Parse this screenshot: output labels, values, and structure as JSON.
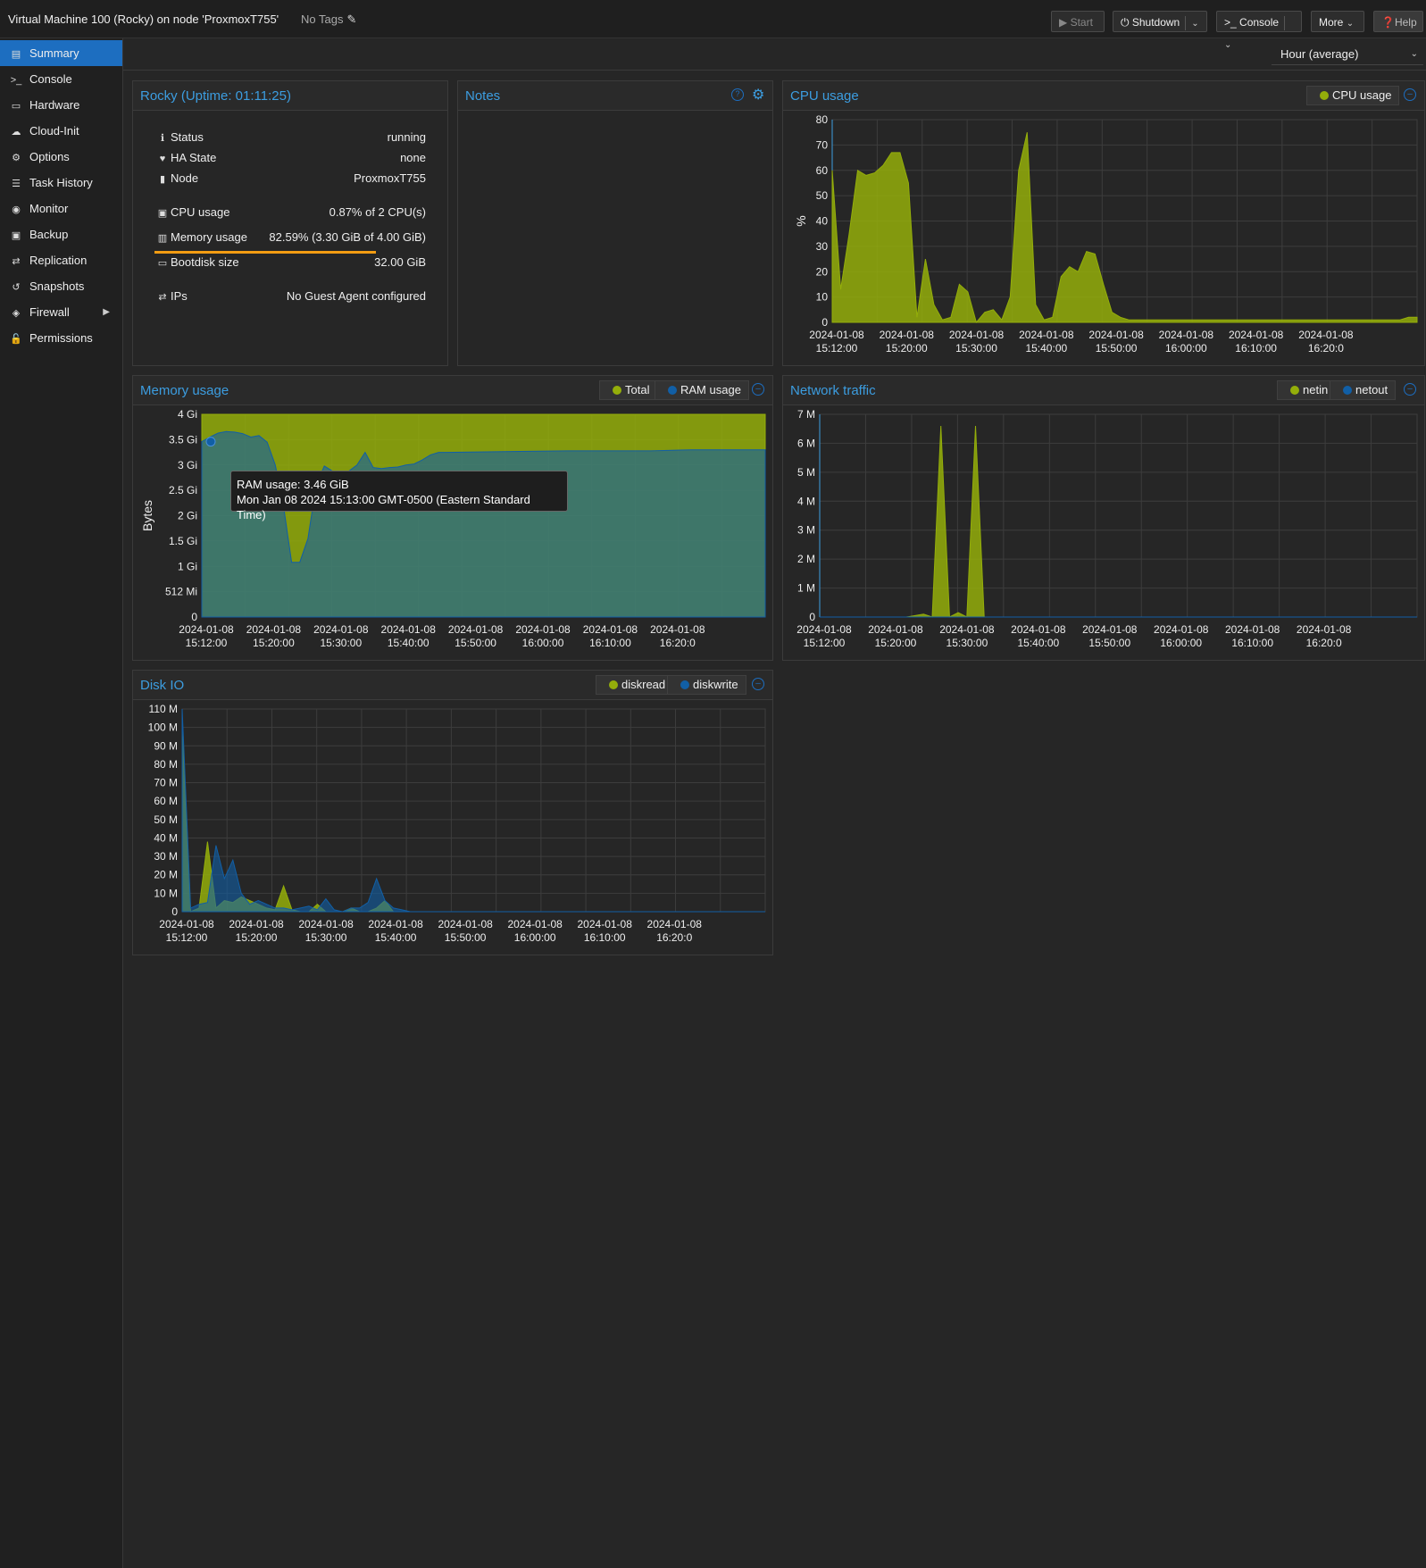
{
  "header": {
    "title": "Virtual Machine 100 (Rocky) on node 'ProxmoxT755'",
    "tags": "No Tags",
    "buttons": {
      "start": "Start",
      "shutdown": "Shutdown",
      "console": "Console",
      "more": "More",
      "help": "Help"
    }
  },
  "sidebar": {
    "items": [
      {
        "label": "Summary",
        "icon": "book-icon",
        "glyph": "▤"
      },
      {
        "label": "Console",
        "icon": "terminal-icon",
        "glyph": ">_"
      },
      {
        "label": "Hardware",
        "icon": "monitor-icon",
        "glyph": "▭"
      },
      {
        "label": "Cloud-Init",
        "icon": "cloud-icon",
        "glyph": "☁"
      },
      {
        "label": "Options",
        "icon": "gear-icon",
        "glyph": "⚙"
      },
      {
        "label": "Task History",
        "icon": "list-icon",
        "glyph": "☰"
      },
      {
        "label": "Monitor",
        "icon": "eye-icon",
        "glyph": "◉"
      },
      {
        "label": "Backup",
        "icon": "floppy-icon",
        "glyph": "▣"
      },
      {
        "label": "Replication",
        "icon": "retweet-icon",
        "glyph": "⇄"
      },
      {
        "label": "Snapshots",
        "icon": "history-icon",
        "glyph": "↺"
      },
      {
        "label": "Firewall",
        "icon": "shield-icon",
        "glyph": "◈"
      },
      {
        "label": "Permissions",
        "icon": "unlock-icon",
        "glyph": "🔓"
      }
    ]
  },
  "timeframe": "Hour (average)",
  "status_panel": {
    "title": "Rocky (Uptime: 01:11:25)",
    "rows": {
      "status": {
        "label": "Status",
        "value": "running"
      },
      "ha": {
        "label": "HA State",
        "value": "none"
      },
      "node": {
        "label": "Node",
        "value": "ProxmoxT755"
      },
      "cpu": {
        "label": "CPU usage",
        "value": "0.87% of 2 CPU(s)"
      },
      "memory": {
        "label": "Memory usage",
        "value": "82.59% (3.30 GiB of 4.00 GiB)",
        "fraction": 0.8259
      },
      "bootdisk": {
        "label": "Bootdisk size",
        "value": "32.00 GiB"
      },
      "ips": {
        "label": "IPs",
        "value": "No Guest Agent configured"
      }
    }
  },
  "notes_panel": {
    "title": "Notes"
  },
  "tooltip": {
    "line1": "RAM usage: 3.46 GiB",
    "line2": "Mon Jan 08 2024 15:13:00 GMT-0500 (Eastern Standard Time)"
  },
  "colors": {
    "accent": "#3c9de0",
    "series_a": "#94ae0a",
    "series_b": "#115fa6",
    "mem_bar": "#f39c12"
  },
  "chart_data": [
    {
      "id": "cpu",
      "type": "area",
      "title": "CPU usage",
      "ylabel": "%",
      "ylim": [
        0,
        80
      ],
      "yticks": [
        "0",
        "10",
        "20",
        "30",
        "40",
        "50",
        "60",
        "70",
        "80"
      ],
      "xticks": [
        "2024-01-08 15:12:00",
        "2024-01-08 15:20:00",
        "2024-01-08 15:30:00",
        "2024-01-08 15:40:00",
        "2024-01-08 15:50:00",
        "2024-01-08 16:00:00",
        "2024-01-08 16:10:00",
        "2024-01-08 16:20:0"
      ],
      "xrange": [
        0,
        69
      ],
      "series": [
        {
          "name": "CPU usage",
          "color": "#94ae0a",
          "x": [
            0,
            1,
            2,
            3,
            4,
            5,
            6,
            7,
            8,
            9,
            10,
            11,
            12,
            13,
            14,
            15,
            16,
            17,
            18,
            19,
            20,
            21,
            22,
            23,
            24,
            25,
            26,
            27,
            28,
            29,
            30,
            31,
            32,
            33,
            34,
            35,
            36,
            37,
            38,
            39,
            40,
            41,
            42,
            43,
            44,
            45,
            46,
            47,
            48,
            49,
            50,
            51,
            52,
            53,
            54,
            55,
            56,
            57,
            58,
            59,
            60,
            61,
            62,
            63,
            64,
            65,
            66,
            67,
            68,
            69
          ],
          "values": [
            60,
            13,
            35,
            60,
            58,
            59,
            62,
            67,
            67,
            55,
            2,
            25,
            7,
            1,
            2,
            15,
            12,
            0,
            4,
            5,
            1,
            10,
            60,
            75,
            7,
            1,
            2,
            18,
            22,
            20,
            28,
            27,
            15,
            4,
            2,
            1,
            1,
            1,
            1,
            1,
            1,
            1,
            1,
            1,
            1,
            1,
            1,
            1,
            1,
            1,
            1,
            1,
            1,
            1,
            1,
            1,
            1,
            1,
            1,
            1,
            1,
            1,
            1,
            1,
            1,
            1,
            1,
            1,
            2,
            2
          ]
        }
      ]
    },
    {
      "id": "mem",
      "type": "area",
      "title": "Memory usage",
      "ylabel": "Bytes",
      "ylim": [
        0,
        4
      ],
      "yticks": [
        "0",
        "512 Mi",
        "1 Gi",
        "1.5 Gi",
        "2 Gi",
        "2.5 Gi",
        "3 Gi",
        "3.5 Gi",
        "4 Gi"
      ],
      "xticks": [
        "2024-01-08 15:12:00",
        "2024-01-08 15:20:00",
        "2024-01-08 15:30:00",
        "2024-01-08 15:40:00",
        "2024-01-08 15:50:00",
        "2024-01-08 16:00:00",
        "2024-01-08 16:10:00",
        "2024-01-08 16:20:0"
      ],
      "xrange": [
        0,
        69
      ],
      "series": [
        {
          "name": "Total",
          "color": "#94ae0a",
          "x": [
            0,
            69
          ],
          "values": [
            4,
            4
          ]
        },
        {
          "name": "RAM usage",
          "color": "#115fa6",
          "x": [
            0,
            1,
            2,
            3,
            4,
            5,
            6,
            7,
            8,
            9,
            10,
            11,
            12,
            13,
            14,
            15,
            16,
            17,
            18,
            19,
            20,
            21,
            22,
            23,
            24,
            25,
            26,
            27,
            28,
            29,
            30,
            35,
            40,
            45,
            50,
            55,
            60,
            65,
            69
          ],
          "values": [
            3.46,
            3.55,
            3.63,
            3.66,
            3.65,
            3.62,
            3.55,
            3.58,
            3.45,
            3.0,
            2.2,
            1.08,
            1.08,
            1.55,
            2.6,
            2.98,
            2.88,
            2.88,
            2.88,
            3.0,
            3.25,
            2.95,
            2.93,
            2.95,
            2.96,
            3.0,
            3.02,
            3.1,
            3.2,
            3.25,
            3.25,
            3.26,
            3.27,
            3.28,
            3.28,
            3.28,
            3.3,
            3.3,
            3.3
          ]
        }
      ]
    },
    {
      "id": "net",
      "type": "area",
      "title": "Network traffic",
      "ylim": [
        0,
        7
      ],
      "yticks": [
        "0",
        "1 M",
        "2 M",
        "3 M",
        "4 M",
        "5 M",
        "6 M",
        "7 M"
      ],
      "xticks": [
        "2024-01-08 15:12:00",
        "2024-01-08 15:20:00",
        "2024-01-08 15:30:00",
        "2024-01-08 15:40:00",
        "2024-01-08 15:50:00",
        "2024-01-08 16:00:00",
        "2024-01-08 16:10:00",
        "2024-01-08 16:20:0"
      ],
      "xrange": [
        0,
        69
      ],
      "series": [
        {
          "name": "netin",
          "color": "#94ae0a",
          "x": [
            0,
            10,
            12,
            13,
            14,
            15,
            16,
            17,
            18,
            19,
            20,
            21,
            69
          ],
          "values": [
            0,
            0,
            0.1,
            0,
            6.6,
            0,
            0.15,
            0,
            6.6,
            0,
            0,
            0,
            0
          ]
        },
        {
          "name": "netout",
          "color": "#115fa6",
          "x": [
            0,
            69
          ],
          "values": [
            0,
            0
          ]
        }
      ]
    },
    {
      "id": "disk",
      "type": "area",
      "title": "Disk IO",
      "ylim": [
        0,
        110
      ],
      "yticks": [
        "0",
        "10 M",
        "20 M",
        "30 M",
        "40 M",
        "50 M",
        "60 M",
        "70 M",
        "80 M",
        "90 M",
        "100 M",
        "110 M"
      ],
      "xticks": [
        "2024-01-08 15:12:00",
        "2024-01-08 15:20:00",
        "2024-01-08 15:30:00",
        "2024-01-08 15:40:00",
        "2024-01-08 15:50:00",
        "2024-01-08 16:00:00",
        "2024-01-08 16:10:00",
        "2024-01-08 16:20:0"
      ],
      "xrange": [
        0,
        69
      ],
      "series": [
        {
          "name": "diskread",
          "color": "#94ae0a",
          "x": [
            0,
            1,
            2,
            3,
            4,
            5,
            6,
            7,
            8,
            9,
            10,
            11,
            12,
            13,
            14,
            15,
            16,
            17,
            18,
            19,
            20,
            21,
            22,
            23,
            24,
            25,
            26,
            69
          ],
          "values": [
            100,
            0,
            2,
            38,
            2,
            6,
            5,
            8,
            6,
            4,
            2,
            1,
            14,
            1,
            0,
            0,
            4,
            0,
            0,
            0,
            2,
            0,
            0,
            2,
            6,
            0,
            0,
            0
          ]
        },
        {
          "name": "diskwrite",
          "color": "#115fa6",
          "x": [
            0,
            1,
            2,
            3,
            4,
            5,
            6,
            7,
            8,
            9,
            10,
            11,
            12,
            13,
            14,
            15,
            16,
            17,
            18,
            19,
            20,
            21,
            22,
            23,
            24,
            25,
            26,
            27,
            69
          ],
          "values": [
            110,
            2,
            4,
            5,
            36,
            18,
            28,
            10,
            4,
            6,
            4,
            2,
            2,
            1,
            2,
            3,
            1,
            7,
            1,
            0,
            2,
            2,
            5,
            18,
            6,
            2,
            1,
            0,
            0
          ]
        }
      ]
    }
  ]
}
